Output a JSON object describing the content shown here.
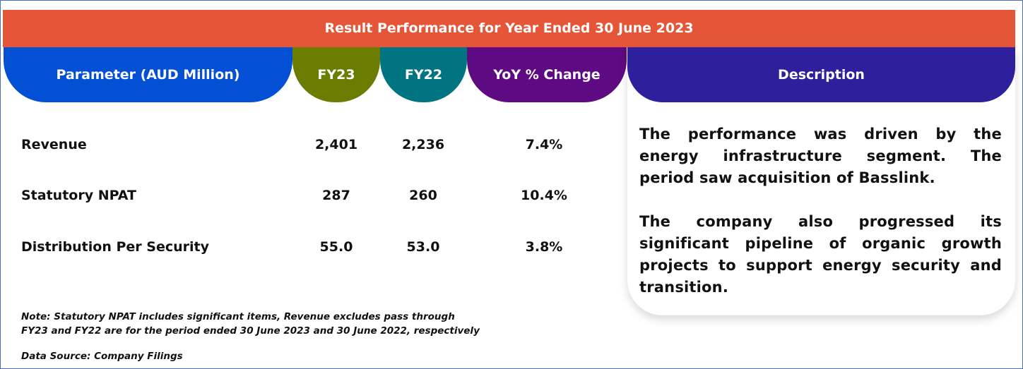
{
  "title": "Result Performance for Year Ended 30 June 2023",
  "headers": {
    "parameter": "Parameter (AUD Million)",
    "fy23": "FY23",
    "fy22": "FY22",
    "yoy": "YoY % Change",
    "description": "Description"
  },
  "rows": [
    {
      "label": "Revenue",
      "fy23": "2,401",
      "fy22": "2,236",
      "yoy": "7.4%"
    },
    {
      "label": "Statutory NPAT",
      "fy23": "287",
      "fy22": "260",
      "yoy": "10.4%"
    },
    {
      "label": "Distribution Per Security",
      "fy23": "55.0",
      "fy22": "53.0",
      "yoy": "3.8%"
    }
  ],
  "description": [
    "The performance was driven by the energy infrastructure segment. The period saw acquisition of Basslink.",
    "The company also progressed its significant pipeline of organic growth projects to support energy security and transition."
  ],
  "notes": [
    "Note: Statutory NPAT includes significant items, Revenue excludes pass through",
    "FY23 and FY22 are for the period ended 30 June 2023 and 30 June 2022, respectively",
    "Data Source: Company Filings"
  ],
  "colors": {
    "title": "#e55638",
    "parameter": "#0450d4",
    "fy23": "#6b7d00",
    "fy22": "#007480",
    "yoy": "#5e0a82",
    "description": "#2e1f9c"
  }
}
